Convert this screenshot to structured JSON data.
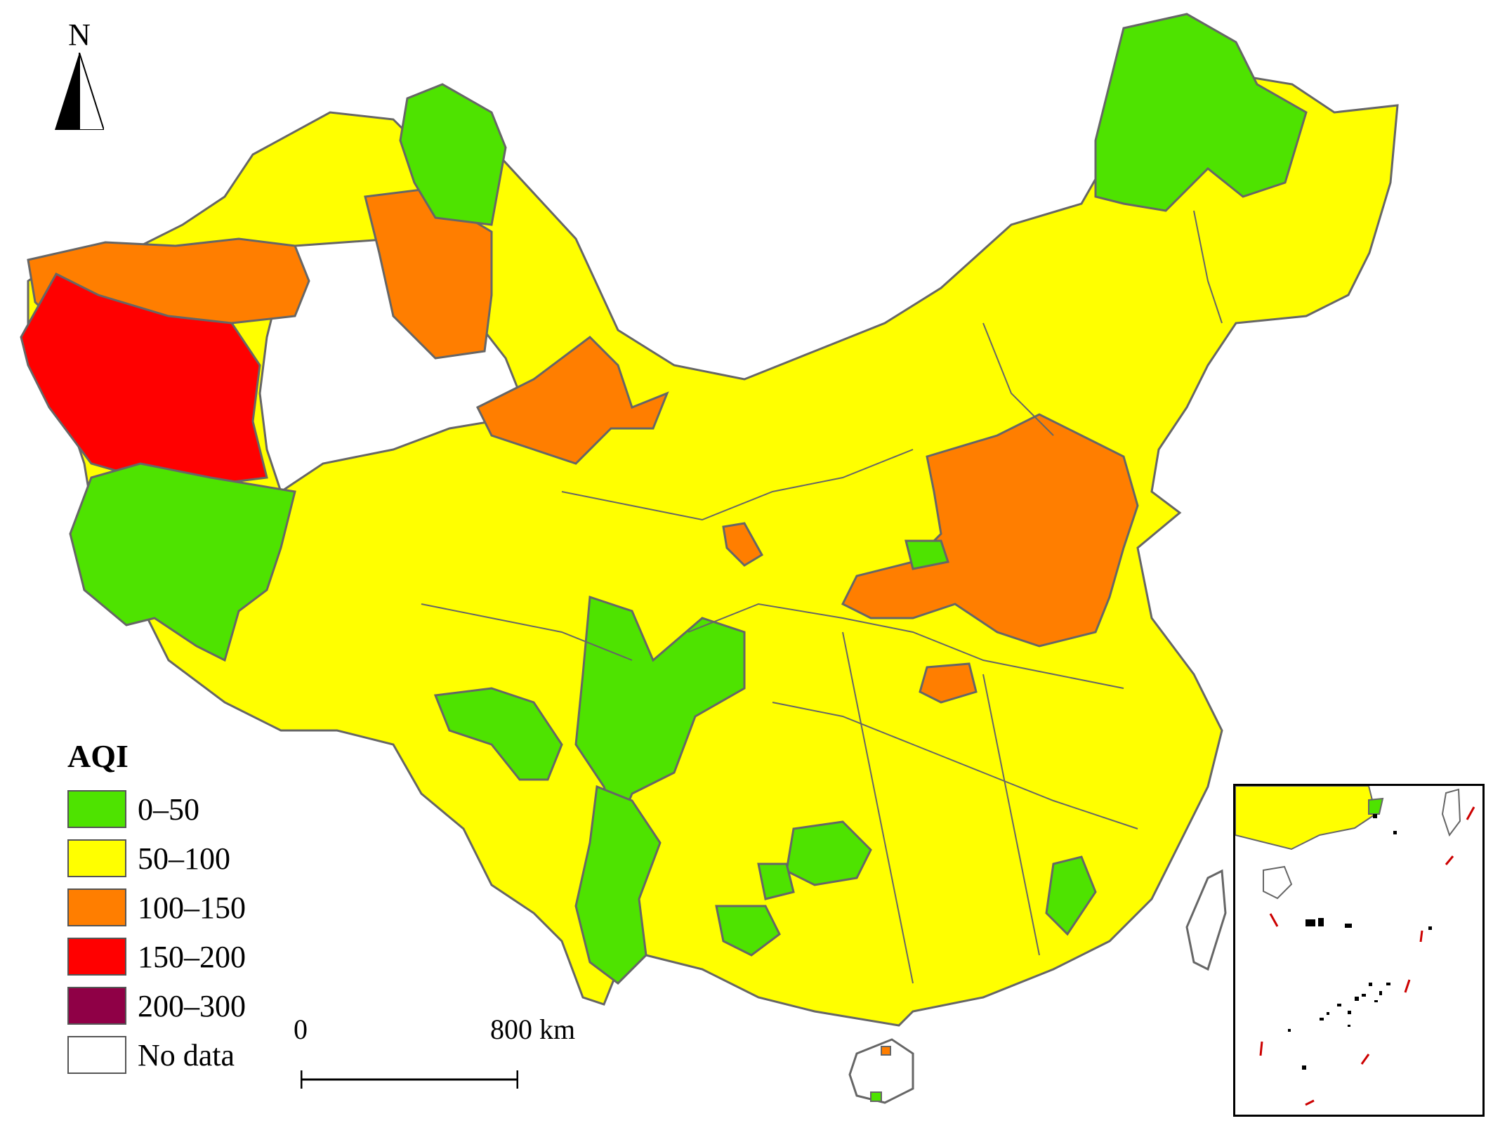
{
  "legend": {
    "title": "AQI",
    "items": [
      {
        "label": "0–50",
        "color": "#4ee300"
      },
      {
        "label": "50–100",
        "color": "#ffff00"
      },
      {
        "label": "100–150",
        "color": "#ff7e00"
      },
      {
        "label": "150–200",
        "color": "#ff0000"
      },
      {
        "label": "200–300",
        "color": "#8f0046"
      },
      {
        "label": "No data",
        "color": "#ffffff"
      }
    ]
  },
  "north_arrow": {
    "label": "N"
  },
  "scale_bar": {
    "start": "0",
    "end": "800",
    "unit": "km"
  },
  "colors": {
    "good": "#4ee300",
    "moderate": "#ffff00",
    "unhealthy_sensitive": "#ff7e00",
    "unhealthy": "#ff0000",
    "very_unhealthy": "#8f0046",
    "no_data": "#ffffff",
    "border": "#666666",
    "island_line": "#cc0000"
  }
}
